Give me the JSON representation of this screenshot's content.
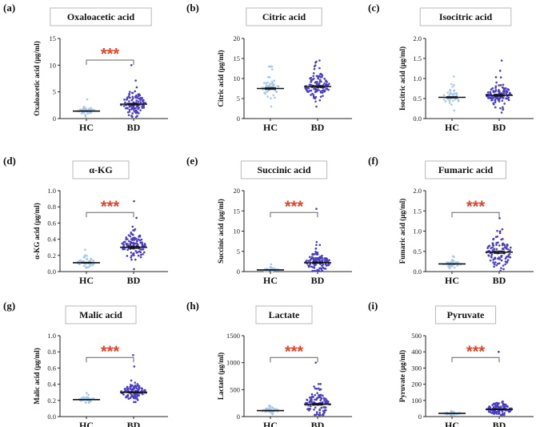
{
  "colors": {
    "hc": "#a8c8ea",
    "bd": "#4a3fc0",
    "significance": "#e0442a"
  },
  "chart_data": [
    {
      "type": "scatter",
      "panel_label": "(a)",
      "title": "Oxaloacetic acid",
      "ylabel": "Oxaloacetic acid (μg/ml)",
      "categories": [
        "HC",
        "BD"
      ],
      "ylim": [
        0,
        15
      ],
      "yticks": [
        0,
        5,
        10,
        15
      ],
      "ytick_labels": [
        "0",
        "5",
        "10",
        "15"
      ],
      "significance": "***",
      "series": [
        {
          "name": "HC",
          "n": 45,
          "center": 1.4,
          "spread": 0.5,
          "min": 0.4,
          "max": 3.6
        },
        {
          "name": "BD",
          "n": 110,
          "center": 2.7,
          "spread": 1.3,
          "min": 0.3,
          "max": 10.0
        }
      ]
    },
    {
      "type": "scatter",
      "panel_label": "(b)",
      "title": "Citric acid",
      "ylabel": "Citric acid (μg/ml)",
      "categories": [
        "HC",
        "BD"
      ],
      "ylim": [
        0,
        20
      ],
      "yticks": [
        0,
        5,
        10,
        15,
        20
      ],
      "ytick_labels": [
        "0",
        "5",
        "10",
        "15",
        "20"
      ],
      "significance": "",
      "series": [
        {
          "name": "HC",
          "n": 45,
          "center": 7.5,
          "spread": 2.0,
          "min": 3.0,
          "max": 13.0
        },
        {
          "name": "BD",
          "n": 110,
          "center": 8.0,
          "spread": 1.9,
          "min": 3.0,
          "max": 14.5
        }
      ]
    },
    {
      "type": "scatter",
      "panel_label": "(c)",
      "title": "Isocitric acid",
      "ylabel": "Isocitric acid (μg/ml)",
      "categories": [
        "HC",
        "BD"
      ],
      "ylim": [
        0,
        2.0
      ],
      "yticks": [
        0,
        0.5,
        1.0,
        1.5,
        2.0
      ],
      "ytick_labels": [
        "0.0",
        "0.5",
        "1.0",
        "1.5",
        "2.0"
      ],
      "significance": "",
      "series": [
        {
          "name": "HC",
          "n": 45,
          "center": 0.53,
          "spread": 0.13,
          "min": 0.2,
          "max": 1.05
        },
        {
          "name": "BD",
          "n": 110,
          "center": 0.58,
          "spread": 0.18,
          "min": 0.15,
          "max": 1.45
        }
      ]
    },
    {
      "type": "scatter",
      "panel_label": "(d)",
      "title": "α-KG",
      "ylabel": "α-KG acid (μg/ml)",
      "categories": [
        "HC",
        "BD"
      ],
      "ylim": [
        0,
        1.0
      ],
      "yticks": [
        0,
        0.2,
        0.4,
        0.6,
        0.8,
        1.0
      ],
      "ytick_labels": [
        "0.0",
        "0.2",
        "0.4",
        "0.6",
        "0.8",
        "1.0"
      ],
      "significance": "***",
      "series": [
        {
          "name": "HC",
          "n": 45,
          "center": 0.11,
          "spread": 0.04,
          "min": 0.05,
          "max": 0.27
        },
        {
          "name": "BD",
          "n": 110,
          "center": 0.3,
          "spread": 0.12,
          "min": 0.03,
          "max": 0.87
        }
      ]
    },
    {
      "type": "scatter",
      "panel_label": "(e)",
      "title": "Succinic acid",
      "ylabel": "Succinic acid (μg/ml)",
      "categories": [
        "HC",
        "BD"
      ],
      "ylim": [
        0,
        20
      ],
      "yticks": [
        0,
        5,
        10,
        15,
        20
      ],
      "ytick_labels": [
        "0",
        "5",
        "10",
        "15",
        "20"
      ],
      "significance": "***",
      "series": [
        {
          "name": "HC",
          "n": 45,
          "center": 0.4,
          "spread": 0.35,
          "min": 0.05,
          "max": 1.8
        },
        {
          "name": "BD",
          "n": 110,
          "center": 2.2,
          "spread": 1.5,
          "min": 0.1,
          "max": 15.5
        }
      ]
    },
    {
      "type": "scatter",
      "panel_label": "(f)",
      "title": "Fumaric acid",
      "ylabel": "Fumaric acid (μg/ml)",
      "categories": [
        "HC",
        "BD"
      ],
      "ylim": [
        0,
        2.0
      ],
      "yticks": [
        0,
        0.5,
        1.0,
        1.5,
        2.0
      ],
      "ytick_labels": [
        "0.0",
        "0.5",
        "1.0",
        "1.5",
        "2.0"
      ],
      "significance": "***",
      "series": [
        {
          "name": "HC",
          "n": 45,
          "center": 0.19,
          "spread": 0.05,
          "min": 0.08,
          "max": 0.38
        },
        {
          "name": "BD",
          "n": 110,
          "center": 0.48,
          "spread": 0.25,
          "min": 0.02,
          "max": 1.32
        }
      ]
    },
    {
      "type": "scatter",
      "panel_label": "(g)",
      "title": "Malic acid",
      "ylabel": "Malic acid (μg/ml)",
      "categories": [
        "HC",
        "BD"
      ],
      "ylim": [
        0,
        1.0
      ],
      "yticks": [
        0,
        0.2,
        0.4,
        0.6,
        0.8,
        1.0
      ],
      "ytick_labels": [
        "0.0",
        "0.2",
        "0.4",
        "0.6",
        "0.8",
        "1.0"
      ],
      "significance": "***",
      "series": [
        {
          "name": "HC",
          "n": 45,
          "center": 0.21,
          "spread": 0.02,
          "min": 0.17,
          "max": 0.29
        },
        {
          "name": "BD",
          "n": 110,
          "center": 0.3,
          "spread": 0.06,
          "min": 0.18,
          "max": 0.76
        }
      ]
    },
    {
      "type": "scatter",
      "panel_label": "(h)",
      "title": "Lactate",
      "ylabel": "Lactate (μg/ml)",
      "categories": [
        "HC",
        "BD"
      ],
      "ylim": [
        0,
        1500
      ],
      "yticks": [
        0,
        500,
        1000,
        1500
      ],
      "ytick_labels": [
        "0",
        "500",
        "1000",
        "1500"
      ],
      "significance": "***",
      "series": [
        {
          "name": "HC",
          "n": 45,
          "center": 110,
          "spread": 30,
          "min": 40,
          "max": 200
        },
        {
          "name": "BD",
          "n": 110,
          "center": 230,
          "spread": 150,
          "min": 30,
          "max": 1000
        }
      ]
    },
    {
      "type": "scatter",
      "panel_label": "(i)",
      "title": "Pyruvate",
      "ylabel": "Pyruvate (μg/ml)",
      "categories": [
        "HC",
        "BD"
      ],
      "ylim": [
        0,
        500
      ],
      "yticks": [
        0,
        100,
        200,
        300,
        400,
        500
      ],
      "ytick_labels": [
        "0",
        "100",
        "200",
        "300",
        "400",
        "500"
      ],
      "significance": "***",
      "series": [
        {
          "name": "HC",
          "n": 45,
          "center": 20,
          "spread": 5,
          "min": 10,
          "max": 35
        },
        {
          "name": "BD",
          "n": 110,
          "center": 45,
          "spread": 25,
          "min": 10,
          "max": 400
        }
      ]
    }
  ]
}
